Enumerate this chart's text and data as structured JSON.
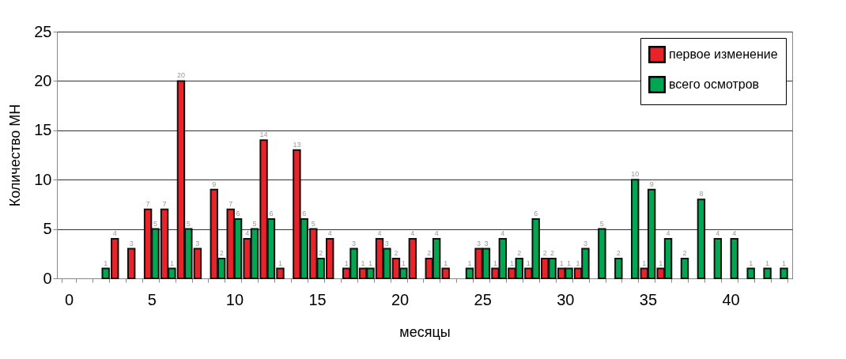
{
  "chart_data": {
    "type": "bar",
    "xlabel": "месяцы",
    "ylabel": "Количество МН",
    "categories": [
      "0",
      null,
      null,
      null,
      null,
      "5",
      null,
      null,
      null,
      null,
      "10",
      null,
      null,
      null,
      null,
      "15",
      null,
      null,
      null,
      null,
      "20",
      null,
      null,
      null,
      null,
      "25",
      null,
      null,
      null,
      null,
      "30",
      null,
      null,
      null,
      null,
      "35",
      null,
      null,
      null,
      null,
      "40",
      null,
      null,
      null
    ],
    "series": [
      {
        "name": "первое изменение",
        "color": "#e8232a",
        "values": [
          null,
          null,
          null,
          4,
          3,
          7,
          7,
          20,
          3,
          9,
          7,
          4,
          14,
          1,
          13,
          5,
          4,
          1,
          1,
          4,
          2,
          4,
          2,
          1,
          null,
          3,
          1,
          1,
          1,
          2,
          1,
          1,
          null,
          null,
          null,
          1,
          1,
          null,
          null,
          null,
          null,
          null,
          null,
          null
        ]
      },
      {
        "name": "всего осмотров",
        "color": "#00a651",
        "values": [
          null,
          null,
          1,
          null,
          null,
          5,
          1,
          5,
          null,
          2,
          6,
          5,
          6,
          null,
          6,
          2,
          null,
          3,
          1,
          3,
          1,
          null,
          4,
          null,
          1,
          3,
          4,
          2,
          6,
          2,
          1,
          3,
          5,
          2,
          10,
          9,
          4,
          2,
          8,
          4,
          4,
          1,
          1,
          1
        ]
      }
    ],
    "ylim": [
      0,
      25
    ],
    "yticks": [
      0,
      5,
      10,
      15,
      20,
      25
    ],
    "grid": "y",
    "legend": "top right",
    "data_labels": true
  }
}
